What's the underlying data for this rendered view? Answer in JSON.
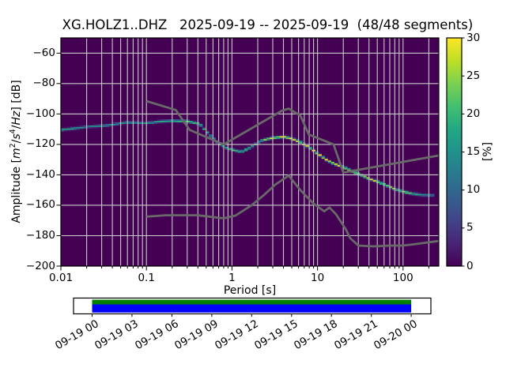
{
  "title": "XG.HOLZ1..DHZ   2025-09-19 -- 2025-09-19  (48/48 segments)",
  "axes": {
    "x": {
      "label": "Period [s]",
      "tick_labels": [
        "0.01",
        "0.1",
        "1",
        "10",
        "100"
      ],
      "tick_values": [
        0.01,
        0.1,
        1,
        10,
        100
      ]
    },
    "y": {
      "label_prefix": "Amplitude [",
      "math": {
        "m": "m",
        "m_exp": "2",
        "slash1": "/",
        "s": "s",
        "s_exp": "4",
        "slash2": "/",
        "hz": "Hz"
      },
      "label_suffix": "] [dB]",
      "tick_labels": [
        "−60",
        "−80",
        "−100",
        "−120",
        "−140",
        "−160",
        "−180",
        "−200"
      ],
      "tick_values": [
        -60,
        -80,
        -100,
        -120,
        -140,
        -160,
        -180,
        -200
      ]
    }
  },
  "colorbar": {
    "label": "[%]",
    "tick_labels": [
      "0",
      "5",
      "10",
      "15",
      "20",
      "25",
      "30"
    ],
    "tick_values": [
      0,
      5,
      10,
      15,
      20,
      25,
      30
    ],
    "min": 0,
    "max": 30
  },
  "timeline": {
    "tick_labels": [
      "09-19 00",
      "09-19 03",
      "09-19 06",
      "09-19 09",
      "09-19 12",
      "09-19 15",
      "09-19 18",
      "09-19 21",
      "09-20 00"
    ],
    "bar_top_color": "#008000",
    "bar_bottom_color": "#0000ff"
  },
  "colors": {
    "figure_background": "#ffffff",
    "plot_background": "#440154",
    "grid": "#c9c9c9",
    "noise_model": "#696969",
    "spine": "#000000",
    "text": "#000000"
  },
  "chart_data": {
    "type": "heatmap",
    "title": "XG.HOLZ1..DHZ 2025-09-19 -- 2025-09-19 (48/48 segments)",
    "xlabel": "Period [s]",
    "x_scale": "log",
    "xlim": [
      0.01,
      261
    ],
    "ylabel": "Amplitude [m^2/s^4/Hz] [dB]",
    "ylim": [
      -200,
      -50
    ],
    "grid": true,
    "colorbar_label": "[%]",
    "colorbar_range": [
      0,
      30
    ],
    "colormap": "viridis",
    "colormap_stops": [
      "#440154",
      "#482475",
      "#414487",
      "#355f8d",
      "#2a788e",
      "#21918c",
      "#22a884",
      "#44bf70",
      "#7ad151",
      "#bddf26",
      "#fde725"
    ],
    "psd_distribution_note": "columns: period_s, mode_db, top_db, bottom_db, peak_probability_pct",
    "psd_distribution": [
      [
        0.01,
        -110.5,
        -104.5,
        -116.5,
        17
      ],
      [
        0.02,
        -108.5,
        -103.0,
        -115.0,
        17
      ],
      [
        0.035,
        -107.5,
        -102.5,
        -114.5,
        16
      ],
      [
        0.06,
        -105.5,
        -102.0,
        -114.0,
        16
      ],
      [
        0.1,
        -106.0,
        -102.5,
        -117.0,
        16
      ],
      [
        0.14,
        -105.0,
        -102.5,
        -119.0,
        18
      ],
      [
        0.2,
        -104.6,
        -103.3,
        -121.0,
        24
      ],
      [
        0.3,
        -104.8,
        -103.2,
        -124.0,
        24
      ],
      [
        0.42,
        -106.5,
        -103.5,
        -127.0,
        19
      ],
      [
        0.55,
        -114.0,
        -107.0,
        -130.0,
        18
      ],
      [
        0.7,
        -119.5,
        -112.0,
        -131.5,
        19
      ],
      [
        0.85,
        -122.0,
        -115.5,
        -132.5,
        20
      ],
      [
        1.0,
        -123.5,
        -118.0,
        -132.0,
        20
      ],
      [
        1.3,
        -125.0,
        -119.5,
        -130.5,
        20
      ],
      [
        1.7,
        -121.5,
        -117.5,
        -127.5,
        21
      ],
      [
        2.2,
        -117.5,
        -115.0,
        -122.0,
        25
      ],
      [
        3.0,
        -115.8,
        -114.2,
        -118.0,
        30
      ],
      [
        4.0,
        -115.0,
        -113.9,
        -116.6,
        30
      ],
      [
        5.0,
        -116.2,
        -115.1,
        -117.5,
        30
      ],
      [
        6.3,
        -118.5,
        -117.4,
        -119.8,
        30
      ],
      [
        8.0,
        -122.0,
        -120.9,
        -123.3,
        30
      ],
      [
        10,
        -126.0,
        -124.9,
        -127.3,
        30
      ],
      [
        13,
        -130.5,
        -129.4,
        -131.8,
        30
      ],
      [
        16,
        -133.0,
        -131.8,
        -134.3,
        30
      ],
      [
        20,
        -134.8,
        -133.6,
        -136.2,
        30
      ],
      [
        25,
        -137.5,
        -136.2,
        -139.0,
        30
      ],
      [
        32,
        -140.0,
        -138.6,
        -141.5,
        30
      ],
      [
        40,
        -142.5,
        -141.0,
        -144.1,
        30
      ],
      [
        50,
        -144.5,
        -142.9,
        -146.3,
        29
      ],
      [
        63,
        -146.8,
        -145.0,
        -148.7,
        28
      ],
      [
        80,
        -149.3,
        -147.2,
        -151.5,
        26
      ],
      [
        100,
        -151.0,
        -148.7,
        -153.4,
        24
      ],
      [
        130,
        -152.5,
        -149.7,
        -155.5,
        21
      ],
      [
        170,
        -153.3,
        -149.9,
        -157.0,
        17
      ],
      [
        215,
        -153.5,
        -150.0,
        -158.0,
        13
      ]
    ],
    "noise_models": {
      "high": [
        [
          0.1,
          -91.5
        ],
        [
          0.22,
          -97.4
        ],
        [
          0.32,
          -110.5
        ],
        [
          0.8,
          -120
        ],
        [
          3.8,
          -98
        ],
        [
          4.6,
          -96.5
        ],
        [
          6.3,
          -101
        ],
        [
          7.9,
          -113.5
        ],
        [
          15.4,
          -120
        ],
        [
          20,
          -138.5
        ],
        [
          354.8,
          -126
        ]
      ],
      "low": [
        [
          0.1,
          -167.5
        ],
        [
          0.17,
          -166.6
        ],
        [
          0.4,
          -166.6
        ],
        [
          0.8,
          -168.6
        ],
        [
          1.1,
          -166.8
        ],
        [
          1.7,
          -160
        ],
        [
          2.4,
          -153
        ],
        [
          3.2,
          -146.5
        ],
        [
          4.6,
          -140.5
        ],
        [
          6.3,
          -150
        ],
        [
          9,
          -159
        ],
        [
          12,
          -164
        ],
        [
          13.8,
          -161.5
        ],
        [
          16.5,
          -166
        ],
        [
          21.5,
          -176
        ],
        [
          24,
          -181.5
        ],
        [
          30,
          -186.5
        ],
        [
          45,
          -187
        ],
        [
          70,
          -186.5
        ],
        [
          100,
          -186.5
        ],
        [
          140,
          -185.5
        ],
        [
          261,
          -183.5
        ]
      ]
    }
  }
}
